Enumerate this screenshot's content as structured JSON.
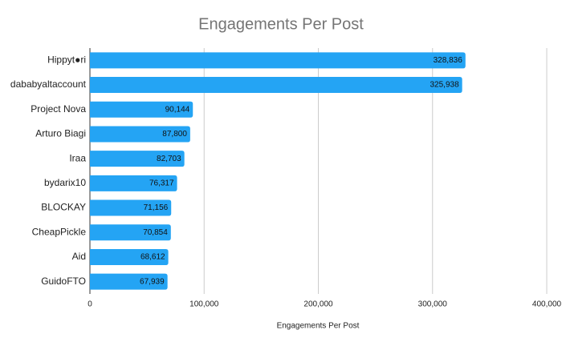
{
  "chart_data": {
    "type": "hbar",
    "title": "Engagements Per Post",
    "x_label": "Engagements Per Post",
    "categories": [
      "Hippyt●ri",
      "dababyaltaccount",
      "Project Nova",
      "Arturo Biagi",
      "Iraa",
      "bydarix10",
      "BLOCKAY",
      "CheapPickle",
      "Aid",
      "GuidoFTO"
    ],
    "values": [
      328836,
      325938,
      90144,
      87800,
      82703,
      76317,
      71156,
      70854,
      68612,
      67939
    ],
    "value_labels": [
      "328,836",
      "325,938",
      "90,144",
      "87,800",
      "82,703",
      "76,317",
      "71,156",
      "70,854",
      "68,612",
      "67,939"
    ],
    "color": "#24a4f4",
    "xlim": [
      0,
      400000
    ],
    "xticks": [
      0,
      {
        "value": 100000,
        "label": "100,000"
      },
      {
        "value": 200000,
        "label": "200,000"
      },
      {
        "value": 300000,
        "label": "300,000"
      },
      {
        "value": 400000,
        "label": "400,000"
      }
    ],
    "grid": true
  }
}
